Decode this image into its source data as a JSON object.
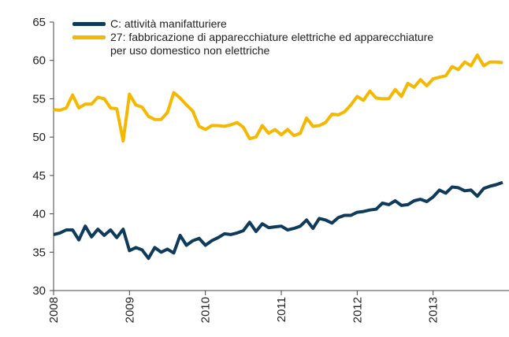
{
  "chart_data": {
    "type": "line",
    "x": [
      2008,
      2008.083,
      2008.167,
      2008.25,
      2008.333,
      2008.417,
      2008.5,
      2008.583,
      2008.667,
      2008.75,
      2008.833,
      2008.917,
      2009,
      2009.083,
      2009.167,
      2009.25,
      2009.333,
      2009.417,
      2009.5,
      2009.583,
      2009.667,
      2009.75,
      2009.833,
      2009.917,
      2010,
      2010.083,
      2010.167,
      2010.25,
      2010.333,
      2010.417,
      2010.5,
      2010.583,
      2010.667,
      2010.75,
      2010.833,
      2010.917,
      2011,
      2011.083,
      2011.167,
      2011.25,
      2011.333,
      2011.417,
      2011.5,
      2011.583,
      2011.667,
      2011.75,
      2011.833,
      2011.917,
      2012,
      2012.083,
      2012.167,
      2012.25,
      2012.333,
      2012.417,
      2012.5,
      2012.583,
      2012.667,
      2012.75,
      2012.833,
      2012.917,
      2013,
      2013.083,
      2013.167,
      2013.25,
      2013.333,
      2013.417,
      2013.5,
      2013.583,
      2013.667,
      2013.75,
      2013.833,
      2013.917
    ],
    "series": [
      {
        "name": "C: attività manifatturiere",
        "color": "#0e3a5b",
        "values": [
          37.3,
          37.5,
          37.9,
          37.9,
          36.6,
          38.4,
          37.0,
          38.0,
          37.2,
          37.9,
          36.9,
          38.0,
          35.2,
          35.6,
          35.3,
          34.2,
          35.6,
          35.0,
          35.4,
          34.9,
          37.2,
          35.9,
          36.5,
          36.8,
          35.9,
          36.5,
          36.9,
          37.4,
          37.3,
          37.5,
          37.8,
          38.9,
          37.7,
          38.7,
          38.2,
          38.3,
          38.4,
          37.9,
          38.1,
          38.4,
          39.2,
          38.1,
          39.4,
          39.2,
          38.8,
          39.5,
          39.8,
          39.8,
          40.2,
          40.3,
          40.5,
          40.6,
          41.4,
          41.2,
          41.7,
          41.1,
          41.2,
          41.7,
          41.9,
          41.6,
          42.2,
          43.1,
          42.7,
          43.5,
          43.4,
          43.0,
          43.1,
          42.3,
          43.3,
          43.6,
          43.8,
          44.1
        ]
      },
      {
        "name": "27: fabbricazione di apparecchiature elettriche ed apparecchiature per uso domestico non elettriche",
        "color": "#f5b800",
        "values": [
          53.6,
          53.5,
          53.8,
          55.5,
          53.8,
          54.3,
          54.3,
          55.2,
          55.0,
          53.8,
          53.7,
          49.5,
          55.6,
          54.2,
          53.9,
          52.7,
          52.3,
          52.3,
          53.2,
          55.8,
          55.1,
          54.2,
          53.4,
          51.4,
          51.0,
          51.5,
          51.5,
          51.4,
          51.6,
          51.9,
          51.3,
          49.8,
          50.0,
          51.5,
          50.5,
          51.0,
          50.3,
          51.0,
          50.2,
          50.5,
          52.5,
          51.4,
          51.5,
          51.9,
          53.0,
          52.9,
          53.3,
          54.2,
          55.3,
          54.8,
          56.0,
          55.1,
          55.0,
          55.0,
          56.2,
          55.3,
          57.0,
          56.5,
          57.5,
          56.7,
          57.6,
          57.8,
          58.0,
          59.2,
          58.8,
          59.8,
          59.3,
          60.7,
          59.3,
          59.8,
          59.8,
          59.7
        ]
      }
    ],
    "xlim": [
      2008,
      2014
    ],
    "xticks": [
      2008,
      2009,
      2010,
      2011,
      2012,
      2013
    ],
    "ylim": [
      30,
      65
    ],
    "yticks": [
      30,
      35,
      40,
      45,
      50,
      55,
      60,
      65
    ]
  }
}
